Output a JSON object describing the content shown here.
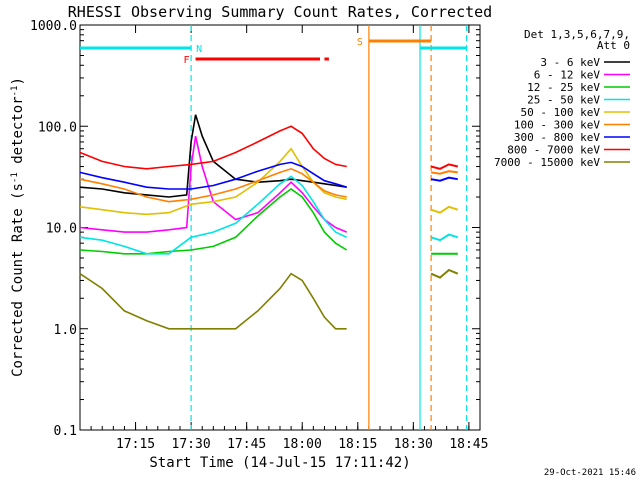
{
  "chart_data": {
    "type": "line",
    "title": "RHESSI Observing Summary Count Rates, Corrected",
    "xlabel": "Start Time (14-Jul-15 17:11:42)",
    "ylabel_prefix": "Corrected Count Rate (s",
    "ylabel_sup1": "-1",
    "ylabel_mid": " detector",
    "ylabel_sup2": "-1",
    "ylabel_suffix": ")",
    "y_scale": "log",
    "ylim": [
      0.1,
      1000
    ],
    "xlim_minutes": [
      17.0,
      18.8
    ],
    "x_ticks": [
      {
        "t": 17.25,
        "label": "17:15"
      },
      {
        "t": 17.5,
        "label": "17:30"
      },
      {
        "t": 17.75,
        "label": "17:45"
      },
      {
        "t": 18.0,
        "label": "18:00"
      },
      {
        "t": 18.25,
        "label": "18:15"
      },
      {
        "t": 18.5,
        "label": "18:30"
      },
      {
        "t": 18.75,
        "label": "18:45"
      }
    ],
    "y_ticks": [
      {
        "v": 0.1,
        "label": "0.1"
      },
      {
        "v": 1,
        "label": "1.0"
      },
      {
        "v": 10,
        "label": "10.0"
      },
      {
        "v": 100,
        "label": "100.0"
      },
      {
        "v": 1000,
        "label": "1000.0"
      }
    ],
    "legend_header": [
      "Det 1,3,5,6,7,9,",
      "Att 0"
    ],
    "series": [
      {
        "name": "3 - 6 keV",
        "color": "#000000",
        "x": [
          17.0,
          17.1,
          17.2,
          17.3,
          17.4,
          17.48,
          17.5,
          17.52,
          17.55,
          17.6,
          17.7,
          17.8,
          17.9,
          17.95,
          18.0,
          18.05,
          18.1,
          18.15,
          18.2
        ],
        "y": [
          25,
          24,
          22,
          21,
          20,
          21,
          70,
          130,
          80,
          45,
          30,
          28,
          29,
          30,
          29,
          28,
          27,
          26,
          25
        ]
      },
      {
        "name": "6 - 12 keV",
        "color": "#ff00ff",
        "x": [
          17.0,
          17.1,
          17.2,
          17.3,
          17.4,
          17.48,
          17.5,
          17.52,
          17.55,
          17.6,
          17.7,
          17.8,
          17.9,
          17.95,
          18.0,
          18.05,
          18.1,
          18.15,
          18.2
        ],
        "y": [
          10,
          9.5,
          9,
          9,
          9.5,
          10,
          40,
          80,
          40,
          18,
          12,
          14,
          22,
          28,
          22,
          16,
          12,
          10,
          9
        ]
      },
      {
        "name": "12 - 25 keV",
        "color": "#00cc00",
        "x": [
          17.0,
          17.1,
          17.2,
          17.3,
          17.4,
          17.5,
          17.6,
          17.7,
          17.8,
          17.9,
          17.95,
          18.0,
          18.05,
          18.1,
          18.15,
          18.2
        ],
        "y": [
          6,
          5.8,
          5.5,
          5.5,
          5.8,
          6,
          6.5,
          8,
          13,
          20,
          24,
          20,
          14,
          9,
          7,
          6
        ]
      },
      {
        "name": "25 - 50 keV",
        "color": "#00e5e5",
        "x": [
          17.0,
          17.1,
          17.2,
          17.3,
          17.4,
          17.5,
          17.6,
          17.7,
          17.8,
          17.9,
          17.95,
          18.0,
          18.05,
          18.1,
          18.15,
          18.2
        ],
        "y": [
          8,
          7.5,
          6.5,
          5.5,
          5.5,
          8,
          9,
          11,
          17,
          27,
          32,
          26,
          18,
          12,
          9,
          8
        ]
      },
      {
        "name": "50 - 100 keV",
        "color": "#e0c000",
        "x": [
          17.0,
          17.1,
          17.2,
          17.3,
          17.4,
          17.5,
          17.6,
          17.7,
          17.8,
          17.9,
          17.95,
          18.0,
          18.05,
          18.1,
          18.15,
          18.2
        ],
        "y": [
          16,
          15,
          14,
          13.5,
          14,
          17,
          18,
          20,
          28,
          45,
          60,
          40,
          28,
          22,
          20,
          19
        ]
      },
      {
        "name": "100 - 300 keV",
        "color": "#ff8000",
        "x": [
          17.0,
          17.1,
          17.2,
          17.3,
          17.4,
          17.5,
          17.6,
          17.7,
          17.8,
          17.9,
          17.95,
          18.0,
          18.05,
          18.1,
          18.15,
          18.2
        ],
        "y": [
          30,
          27,
          24,
          20,
          18,
          19,
          21,
          24,
          29,
          35,
          38,
          34,
          28,
          23,
          21,
          20
        ]
      },
      {
        "name": "300 - 800 keV",
        "color": "#0000ff",
        "x": [
          17.0,
          17.1,
          17.2,
          17.3,
          17.4,
          17.5,
          17.6,
          17.7,
          17.8,
          17.9,
          17.95,
          18.0,
          18.05,
          18.1,
          18.15,
          18.2
        ],
        "y": [
          35,
          31,
          28,
          25,
          24,
          24,
          26,
          30,
          36,
          42,
          44,
          40,
          34,
          29,
          27,
          25
        ]
      },
      {
        "name": "800 - 7000 keV",
        "color": "#ff0000",
        "x": [
          17.0,
          17.1,
          17.2,
          17.3,
          17.4,
          17.5,
          17.6,
          17.7,
          17.8,
          17.9,
          17.95,
          18.0,
          18.05,
          18.1,
          18.15,
          18.2
        ],
        "y": [
          55,
          45,
          40,
          38,
          40,
          42,
          45,
          55,
          70,
          90,
          100,
          85,
          60,
          48,
          42,
          40
        ]
      },
      {
        "name": "7000 - 15000 keV",
        "color": "#808000",
        "x": [
          17.0,
          17.1,
          17.2,
          17.3,
          17.4,
          17.5,
          17.6,
          17.7,
          17.8,
          17.9,
          17.95,
          18.0,
          18.05,
          18.1,
          18.15,
          18.2
        ],
        "y": [
          3.5,
          2.5,
          1.5,
          1.2,
          1.0,
          1.0,
          1.0,
          1.0,
          1.5,
          2.5,
          3.5,
          3.0,
          2.0,
          1.3,
          1.0,
          1.0
        ]
      }
    ],
    "late_segment": {
      "x": [
        18.58,
        18.62,
        18.66,
        18.7
      ],
      "series_values": [
        {
          "color": "#ff0000",
          "y": [
            40,
            38,
            42,
            40
          ]
        },
        {
          "color": "#ff8000",
          "y": [
            35,
            34,
            36,
            35
          ]
        },
        {
          "color": "#0000ff",
          "y": [
            30,
            29,
            31,
            30
          ]
        },
        {
          "color": "#e0c000",
          "y": [
            15,
            14,
            16,
            15
          ]
        },
        {
          "color": "#00e5e5",
          "y": [
            8,
            7.5,
            8.5,
            8
          ]
        },
        {
          "color": "#00cc00",
          "y": [
            5.5,
            5.5,
            5.5,
            5.5
          ]
        },
        {
          "color": "#808000",
          "y": [
            3.5,
            3.2,
            3.8,
            3.5
          ]
        }
      ]
    },
    "state_bars": [
      {
        "label": "N",
        "color": "#00e5e5",
        "segments": [
          [
            17.0,
            17.5
          ],
          [
            18.53,
            18.74
          ]
        ]
      },
      {
        "label": "F",
        "color": "#ff0000",
        "segments": [
          [
            17.52,
            18.08
          ],
          [
            18.1,
            18.12
          ]
        ]
      },
      {
        "label": "S",
        "color": "#ff8000",
        "segments": [
          [
            18.3,
            18.58
          ]
        ]
      }
    ],
    "vertical_markers": [
      {
        "t": 17.5,
        "color": "#00e5e5",
        "style": "dashed"
      },
      {
        "t": 18.3,
        "color": "#ff8000",
        "style": "solid"
      },
      {
        "t": 18.53,
        "color": "#00e5e5",
        "style": "solid"
      },
      {
        "t": 18.58,
        "color": "#ff8000",
        "style": "dashed"
      },
      {
        "t": 18.74,
        "color": "#00e5e5",
        "style": "dashed"
      }
    ]
  },
  "footer": {
    "timestamp": "29-Oct-2021 15:46"
  }
}
